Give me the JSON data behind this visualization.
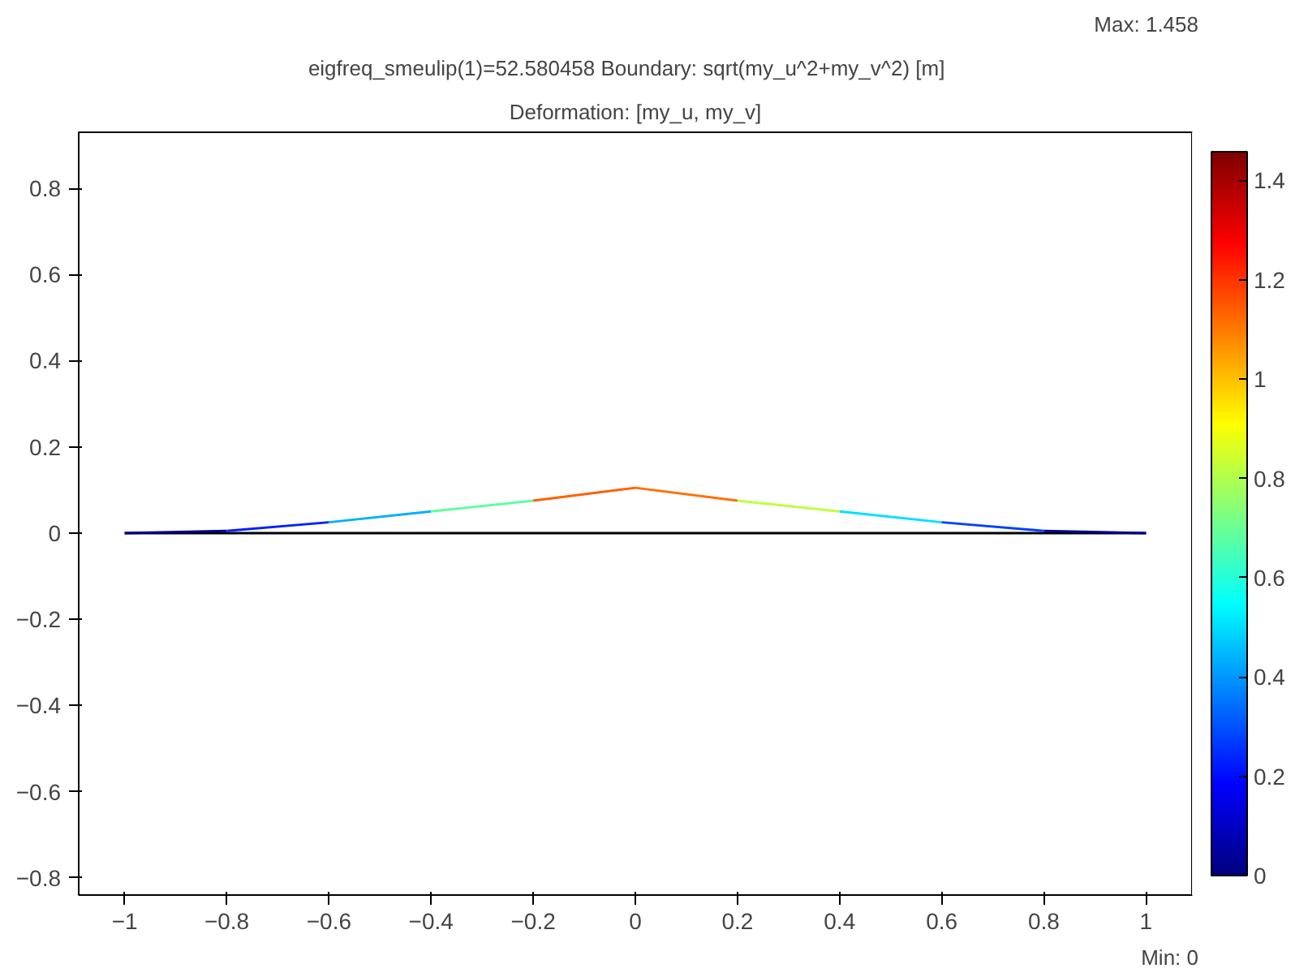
{
  "chart_data": {
    "type": "line",
    "title": "eigfreq_smeulip(1)=52.580458    Boundary: sqrt(my_u^2+my_v^2) [m]",
    "subtitle": "Deformation: [my_u, my_v]",
    "xlim": [
      -1.09,
      1.09
    ],
    "ylim": [
      -0.84,
      0.93
    ],
    "xticks": [
      -1,
      -0.8,
      -0.6,
      -0.4,
      -0.2,
      0,
      0.2,
      0.4,
      0.6,
      0.8,
      1
    ],
    "yticks": [
      -0.8,
      -0.6,
      -0.4,
      -0.2,
      0,
      0.2,
      0.4,
      0.6,
      0.8
    ],
    "clim": [
      0,
      1.458
    ],
    "cticks": [
      0,
      0.2,
      0.4,
      0.6,
      0.8,
      1,
      1.2,
      1.4
    ],
    "grid": false,
    "series": [
      {
        "x": [
          -1,
          1
        ],
        "values": [
          0,
          0
        ],
        "color": "#000000"
      },
      {
        "x": [
          -1,
          -0.8
        ],
        "values": [
          0,
          0.005
        ],
        "color": "#00008f"
      },
      {
        "x": [
          -0.8,
          -0.6
        ],
        "values": [
          0.005,
          0.025
        ],
        "color": "#0020ff"
      },
      {
        "x": [
          -0.6,
          -0.4
        ],
        "values": [
          0.025,
          0.05
        ],
        "color": "#00b0ff"
      },
      {
        "x": [
          -0.4,
          -0.2
        ],
        "values": [
          0.05,
          0.075
        ],
        "color": "#60ffa0"
      },
      {
        "x": [
          -0.2,
          0
        ],
        "values": [
          0.075,
          0.105
        ],
        "color": "#ff6000"
      },
      {
        "x": [
          0,
          0.2
        ],
        "values": [
          0.105,
          0.075
        ],
        "color": "#ff7000"
      },
      {
        "x": [
          0.2,
          0.4
        ],
        "values": [
          0.075,
          0.05
        ],
        "color": "#c0ff40"
      },
      {
        "x": [
          0.4,
          0.6
        ],
        "values": [
          0.05,
          0.025
        ],
        "color": "#00e0ff"
      },
      {
        "x": [
          0.6,
          0.8
        ],
        "values": [
          0.025,
          0.005
        ],
        "color": "#0040ff"
      },
      {
        "x": [
          0.8,
          1
        ],
        "values": [
          0.005,
          0
        ],
        "color": "#000090"
      }
    ],
    "annotations": [
      "Max: 1.458",
      "Min: 0"
    ]
  }
}
